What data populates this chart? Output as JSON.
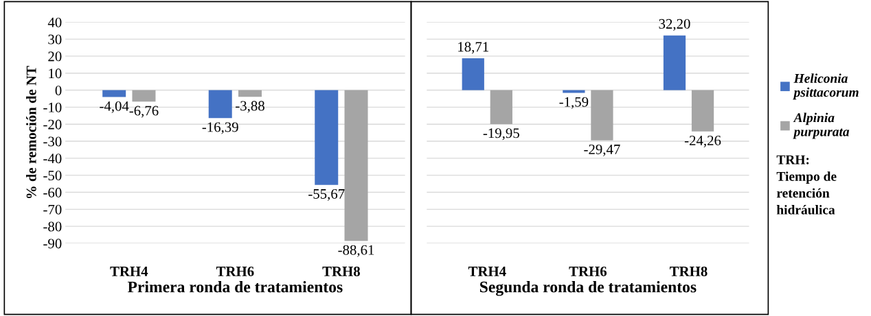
{
  "chart_data": [
    {
      "type": "bar",
      "xlabel": "Primera ronda de tratamientos",
      "ylabel": "% de remoción de NT",
      "categories": [
        "TRH4",
        "TRH6",
        "TRH8"
      ],
      "series": [
        {
          "color": "#4472c4",
          "values": [
            -4.04,
            -16.39,
            -55.67
          ],
          "value_labels": [
            "-4,04",
            "-16,39",
            "-55,67"
          ]
        },
        {
          "color": "#a5a5a5",
          "values": [
            -6.76,
            -3.88,
            -88.61
          ],
          "value_labels": [
            "-6,76",
            "-3,88",
            "-88,61"
          ]
        }
      ],
      "ylim": [
        -90,
        40
      ],
      "yticks": [
        -90,
        -80,
        -70,
        -60,
        -50,
        -40,
        -30,
        -20,
        -10,
        0,
        10,
        20,
        30,
        40
      ],
      "grid": "y"
    },
    {
      "type": "bar",
      "xlabel": "Segunda ronda de tratamientos",
      "categories": [
        "TRH4",
        "TRH6",
        "TRH8"
      ],
      "series": [
        {
          "name": "Heliconia psittacorum",
          "color": "#4472c4",
          "values": [
            18.71,
            -1.59,
            32.2
          ],
          "value_labels": [
            "18,71",
            "-1,59",
            "32,20"
          ]
        },
        {
          "name": "Alpinia purpurata",
          "color": "#a5a5a5",
          "values": [
            -19.95,
            -29.47,
            -24.26
          ],
          "value_labels": [
            "-19,95",
            "-29,47",
            "-24,26"
          ]
        }
      ],
      "ylim": [
        -90,
        40
      ],
      "yticks": [
        -90,
        -80,
        -70,
        -60,
        -50,
        -40,
        -30,
        -20,
        -10,
        0,
        10,
        20,
        30,
        40
      ],
      "grid": "y",
      "tick_labels": "x",
      "legend": "right",
      "annotations": [
        "TRH:\nTiempo de\nretención\nhidráulica"
      ]
    }
  ]
}
